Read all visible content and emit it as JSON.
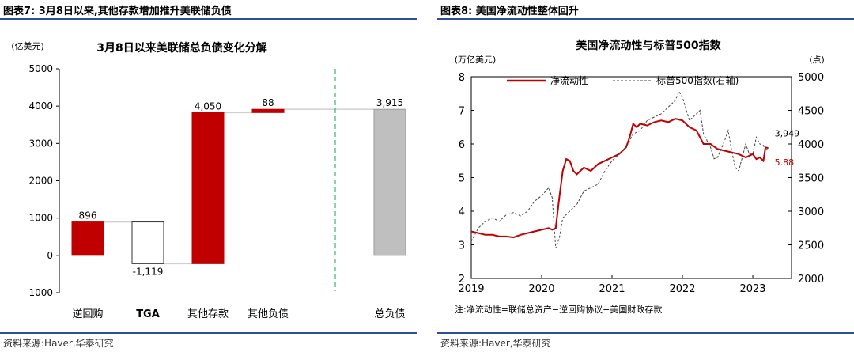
{
  "left_panel": {
    "figure_title": "图表7:  3月8日以来,其他存款增加推升美联储负债",
    "source": "资料来源:Haver,华泰研究"
  },
  "right_panel": {
    "figure_title": "图表8:  美国净流动性整体回升",
    "source": "资料来源:Haver,华泰研究",
    "note": "注:净流动性=联储总资产−逆回购协议−美国财政存款"
  },
  "chart_data": [
    {
      "type": "bar",
      "subtype": "waterfall",
      "title": "3月8日以来美联储总负债变化分解",
      "unit_label": "(亿美元)",
      "categories": [
        "逆回购",
        "TGA",
        "其他存款",
        "其他负债",
        "总负债"
      ],
      "values": [
        896,
        -1119,
        4050,
        88,
        3915
      ],
      "value_labels": [
        "896",
        "-1,119",
        "4,050",
        "88",
        "3,915"
      ],
      "ylim": [
        -1000,
        5000
      ],
      "yticks": [
        -1000,
        0,
        1000,
        2000,
        3000,
        4000,
        5000
      ],
      "colors": {
        "increase": "#c00000",
        "decrease": "#ffffff",
        "total": "#bfbfbf",
        "connector": "#d0d0d0",
        "divider": "#3cb371"
      }
    },
    {
      "type": "line",
      "title": "美国净流动性与标普500指数",
      "left_axis_label": "(万亿美元)",
      "right_axis_label": "(点)",
      "ylim": [
        2,
        8
      ],
      "yticks": [
        2,
        3,
        4,
        5,
        6,
        7,
        8
      ],
      "y2lim": [
        2000,
        5000
      ],
      "y2ticks": [
        2000,
        2500,
        3000,
        3500,
        4000,
        4500,
        5000
      ],
      "xlim": [
        2019.0,
        2023.55
      ],
      "xticks": [
        "2019",
        "2020",
        "2021",
        "2022",
        "2023"
      ],
      "annotations": [
        {
          "text": "3,949",
          "x": 2023.22,
          "y2": 3949
        },
        {
          "text": "5.88",
          "x": 2023.22,
          "y": 5.88,
          "color": "#c00000"
        }
      ],
      "series": [
        {
          "name": "净流动性",
          "axis": "left",
          "color": "#c00000",
          "points": [
            [
              2019.0,
              3.4
            ],
            [
              2019.1,
              3.35
            ],
            [
              2019.2,
              3.3
            ],
            [
              2019.3,
              3.3
            ],
            [
              2019.4,
              3.25
            ],
            [
              2019.5,
              3.25
            ],
            [
              2019.6,
              3.22
            ],
            [
              2019.7,
              3.3
            ],
            [
              2019.8,
              3.35
            ],
            [
              2019.9,
              3.4
            ],
            [
              2020.0,
              3.45
            ],
            [
              2020.1,
              3.5
            ],
            [
              2020.15,
              3.45
            ],
            [
              2020.2,
              3.5
            ],
            [
              2020.25,
              4.4
            ],
            [
              2020.3,
              5.2
            ],
            [
              2020.35,
              5.55
            ],
            [
              2020.4,
              5.5
            ],
            [
              2020.45,
              5.2
            ],
            [
              2020.5,
              5.1
            ],
            [
              2020.55,
              5.2
            ],
            [
              2020.6,
              5.3
            ],
            [
              2020.7,
              5.2
            ],
            [
              2020.8,
              5.4
            ],
            [
              2020.9,
              5.5
            ],
            [
              2021.0,
              5.6
            ],
            [
              2021.1,
              5.7
            ],
            [
              2021.2,
              5.9
            ],
            [
              2021.25,
              6.2
            ],
            [
              2021.3,
              6.6
            ],
            [
              2021.35,
              6.5
            ],
            [
              2021.4,
              6.6
            ],
            [
              2021.5,
              6.55
            ],
            [
              2021.6,
              6.65
            ],
            [
              2021.7,
              6.7
            ],
            [
              2021.8,
              6.65
            ],
            [
              2021.9,
              6.75
            ],
            [
              2022.0,
              6.7
            ],
            [
              2022.1,
              6.5
            ],
            [
              2022.2,
              6.4
            ],
            [
              2022.3,
              6.0
            ],
            [
              2022.4,
              6.0
            ],
            [
              2022.5,
              5.85
            ],
            [
              2022.6,
              5.8
            ],
            [
              2022.7,
              5.75
            ],
            [
              2022.8,
              5.7
            ],
            [
              2022.9,
              5.6
            ],
            [
              2023.0,
              5.7
            ],
            [
              2023.05,
              5.55
            ],
            [
              2023.1,
              5.6
            ],
            [
              2023.15,
              5.5
            ],
            [
              2023.18,
              5.9
            ],
            [
              2023.22,
              5.88
            ]
          ]
        },
        {
          "name": "标普500指数(右轴)",
          "axis": "right",
          "color": "#444444",
          "dash": "3,2",
          "points": [
            [
              2019.0,
              2550
            ],
            [
              2019.1,
              2750
            ],
            [
              2019.2,
              2850
            ],
            [
              2019.3,
              2900
            ],
            [
              2019.4,
              2850
            ],
            [
              2019.5,
              2950
            ],
            [
              2019.6,
              2980
            ],
            [
              2019.7,
              2930
            ],
            [
              2019.8,
              3000
            ],
            [
              2019.9,
              3150
            ],
            [
              2020.0,
              3230
            ],
            [
              2020.1,
              3350
            ],
            [
              2020.15,
              3200
            ],
            [
              2020.2,
              2450
            ],
            [
              2020.25,
              2600
            ],
            [
              2020.3,
              2900
            ],
            [
              2020.4,
              3000
            ],
            [
              2020.5,
              3100
            ],
            [
              2020.6,
              3300
            ],
            [
              2020.7,
              3350
            ],
            [
              2020.8,
              3400
            ],
            [
              2020.9,
              3600
            ],
            [
              2021.0,
              3750
            ],
            [
              2021.1,
              3850
            ],
            [
              2021.2,
              3950
            ],
            [
              2021.3,
              4150
            ],
            [
              2021.4,
              4200
            ],
            [
              2021.5,
              4350
            ],
            [
              2021.6,
              4400
            ],
            [
              2021.7,
              4450
            ],
            [
              2021.8,
              4550
            ],
            [
              2021.9,
              4650
            ],
            [
              2021.95,
              4780
            ],
            [
              2022.0,
              4700
            ],
            [
              2022.1,
              4350
            ],
            [
              2022.2,
              4450
            ],
            [
              2022.25,
              4500
            ],
            [
              2022.3,
              4150
            ],
            [
              2022.4,
              3950
            ],
            [
              2022.45,
              3780
            ],
            [
              2022.5,
              3800
            ],
            [
              2022.6,
              4050
            ],
            [
              2022.65,
              4200
            ],
            [
              2022.7,
              3900
            ],
            [
              2022.75,
              3650
            ],
            [
              2022.8,
              3600
            ],
            [
              2022.85,
              3800
            ],
            [
              2022.9,
              4000
            ],
            [
              2022.95,
              3850
            ],
            [
              2023.0,
              3850
            ],
            [
              2023.05,
              4100
            ],
            [
              2023.1,
              4000
            ],
            [
              2023.15,
              3980
            ],
            [
              2023.18,
              3900
            ],
            [
              2023.22,
              3949
            ]
          ]
        }
      ]
    }
  ]
}
